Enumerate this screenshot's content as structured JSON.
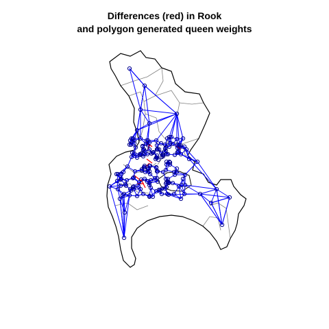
{
  "chart_data": {
    "type": "network-map",
    "title_line1": "Differences (red) in Rook",
    "title_line2": "and polygon generated queen weights",
    "colors": {
      "boundary": "#000000",
      "subdivision": "#808080",
      "links": "#0000ff",
      "differences": "#ff0000",
      "nodes": "#00008b"
    }
  }
}
